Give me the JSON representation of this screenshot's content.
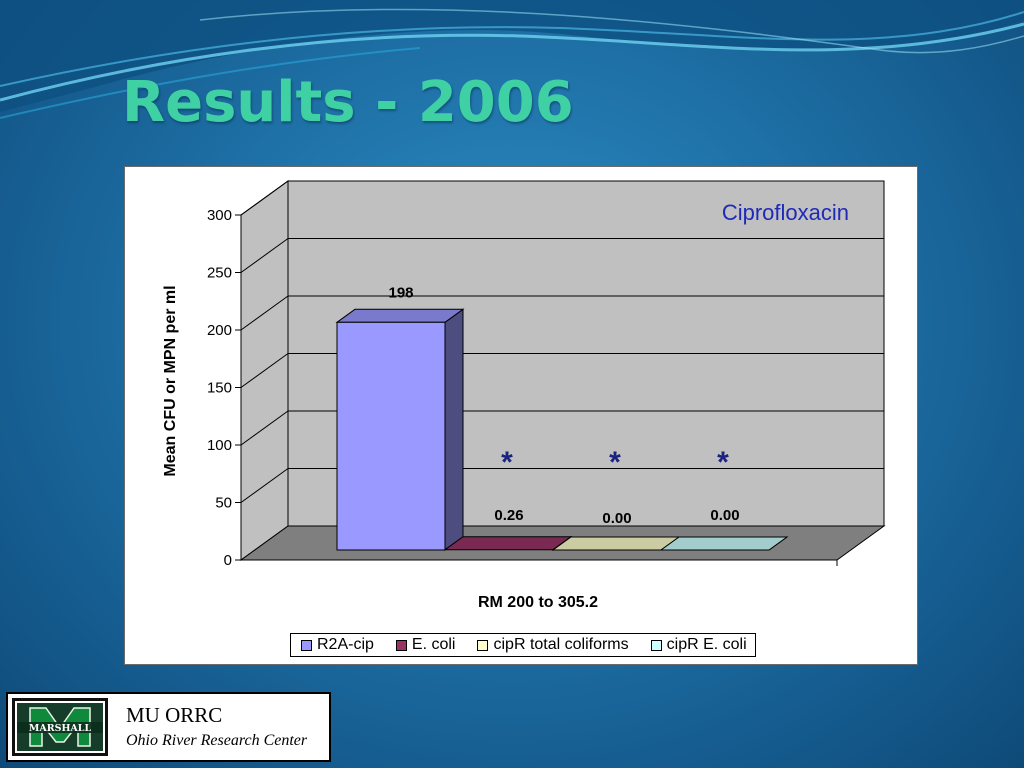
{
  "slide": {
    "title": "Results - 2006"
  },
  "chart_data": {
    "type": "bar",
    "style": "3d-clustered-column",
    "annotation": "Ciprofloxacin",
    "categories": [
      "RM 200 to 305.2"
    ],
    "xlabel": "RM 200 to 305.2",
    "ylabel": "Mean CFU or MPN per ml",
    "ylim": [
      0,
      300
    ],
    "yticks": [
      "0",
      "50",
      "100",
      "150",
      "200",
      "250",
      "300"
    ],
    "grid": true,
    "legend_position": "bottom",
    "series": [
      {
        "name": "R2A-cip",
        "values": [
          198
        ],
        "label": "198",
        "color": "#9999ff",
        "marker": ""
      },
      {
        "name": "E. coli",
        "values": [
          0.26
        ],
        "label": "0.26",
        "color": "#993366",
        "marker": "*"
      },
      {
        "name": "cipR total coliforms",
        "values": [
          0.0
        ],
        "label": "0.00",
        "color": "#ffffcc",
        "marker": "*"
      },
      {
        "name": "cipR E. coli",
        "values": [
          0.0
        ],
        "label": "0.00",
        "color": "#ccffff",
        "marker": "*"
      }
    ]
  },
  "footer": {
    "logo_text": "MARSHALL",
    "org_name": "MU ORRC",
    "org_full": "Ohio River Research Center"
  }
}
